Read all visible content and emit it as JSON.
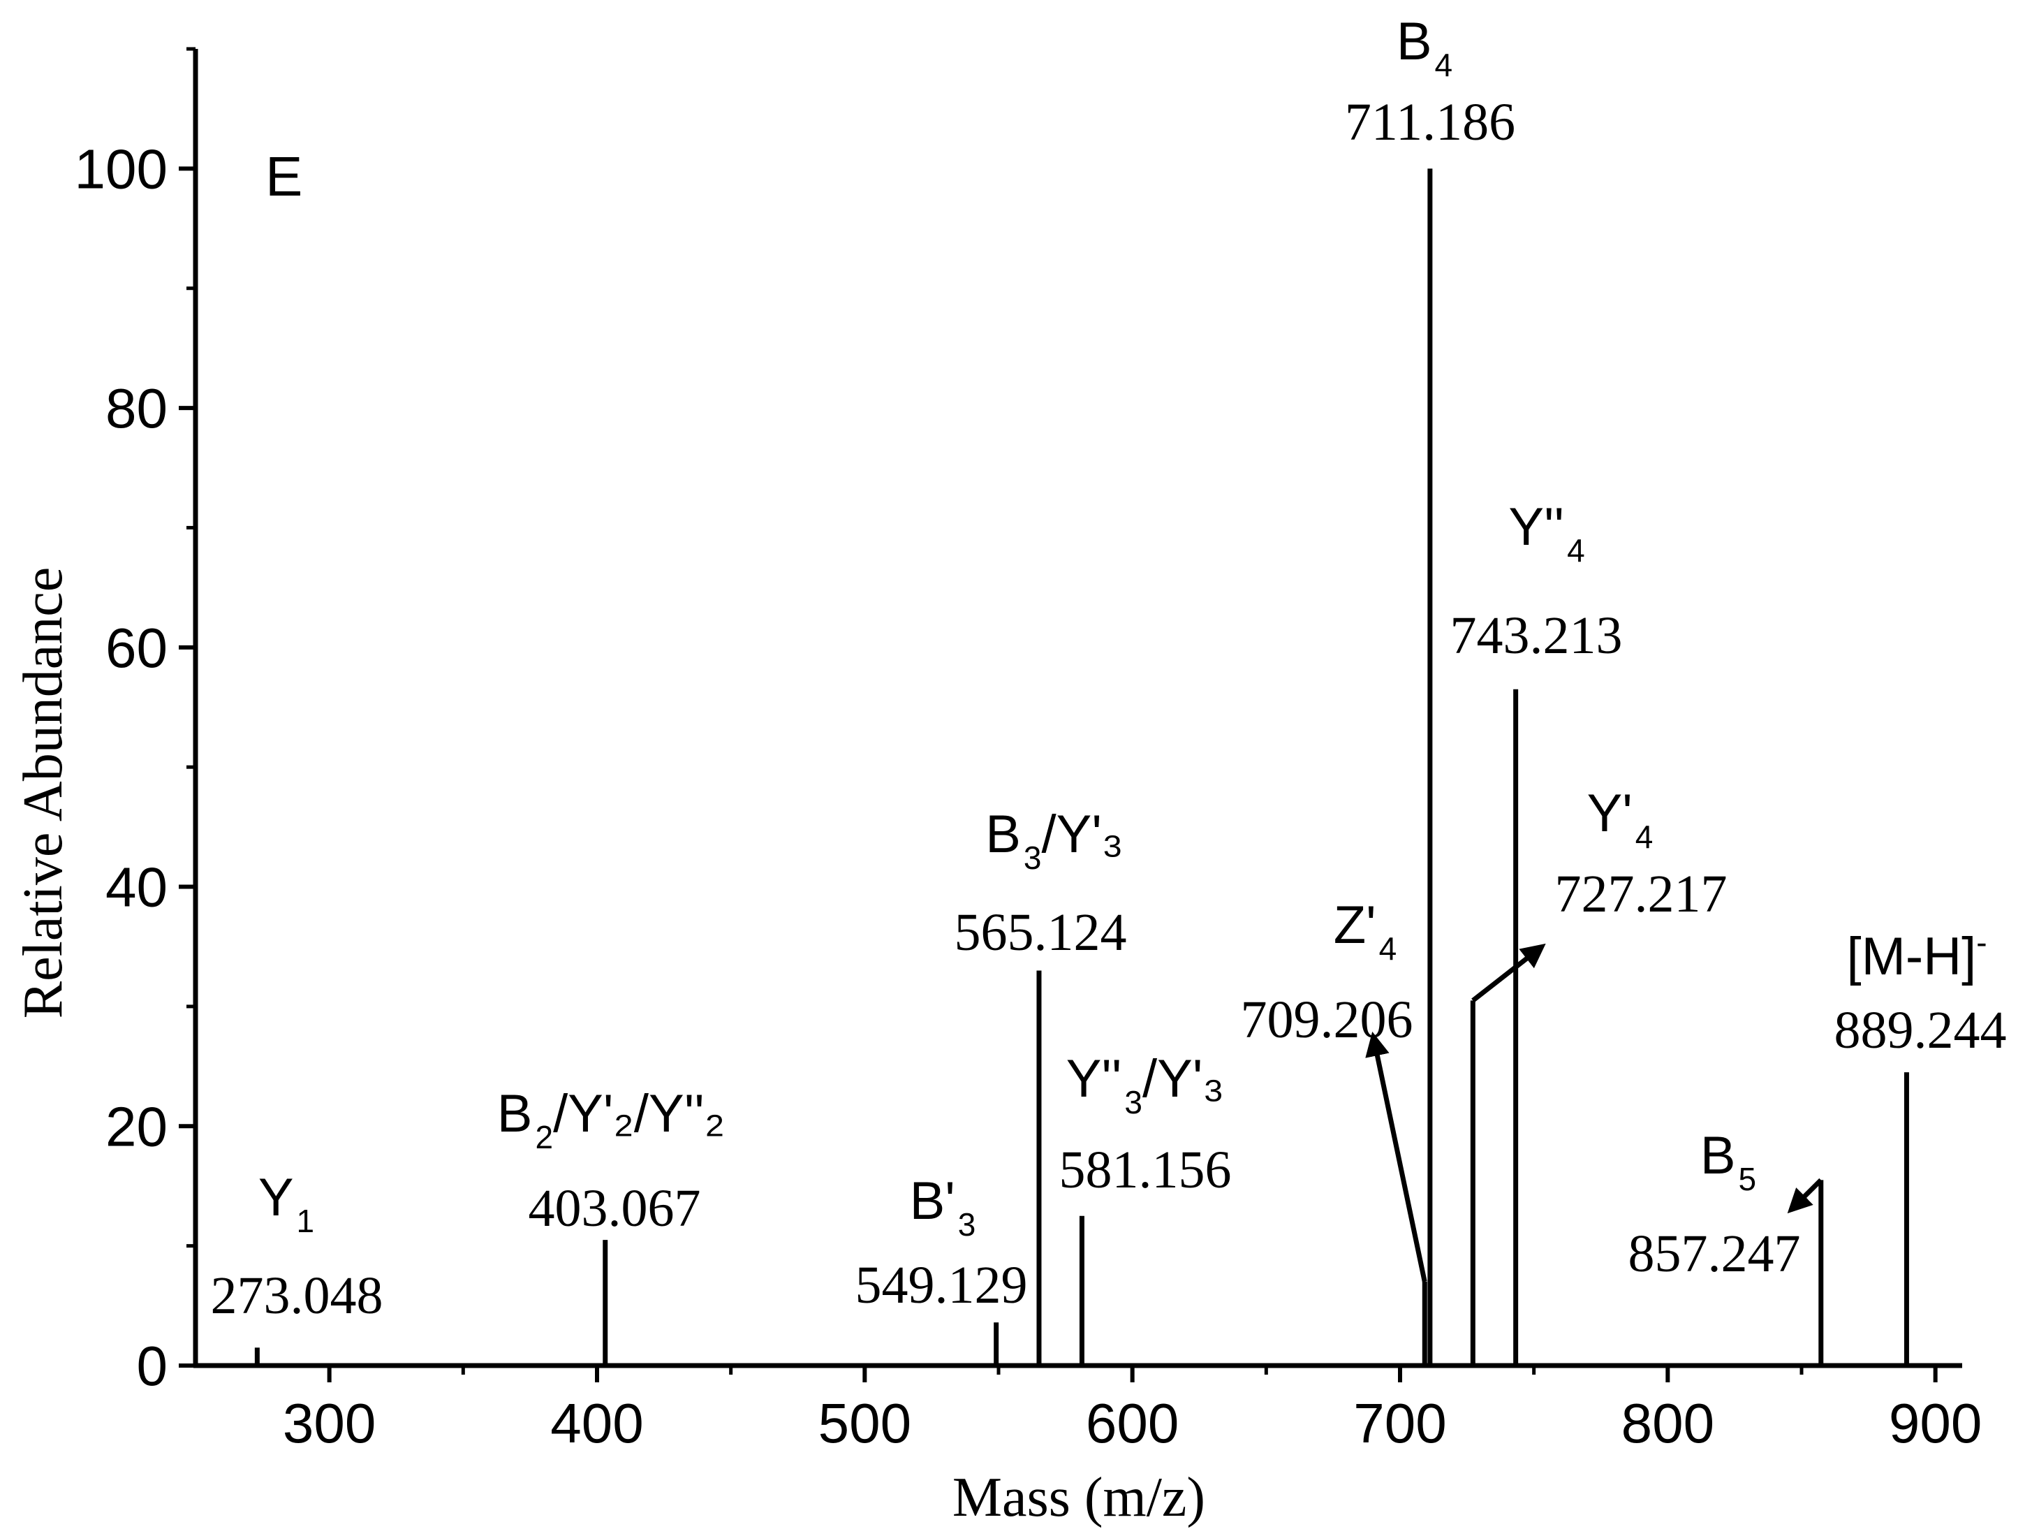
{
  "chart_data": {
    "type": "bar",
    "panel_letter": "E",
    "xlabel": "Mass (m/z)",
    "ylabel": "Relative Abundance",
    "xlim": [
      250,
      910
    ],
    "ylim": [
      0,
      110
    ],
    "xticks": [
      "300",
      "400",
      "500",
      "600",
      "700",
      "800",
      "900"
    ],
    "yticks": [
      "0",
      "20",
      "40",
      "60",
      "80",
      "100"
    ],
    "grid": false,
    "peaks": [
      {
        "mz": 273.048,
        "intensity": 1.5,
        "mass_label": "273.048",
        "ion": {
          "main": "Y",
          "sub": "1",
          "tail": ""
        }
      },
      {
        "mz": 403.067,
        "intensity": 10.5,
        "mass_label": "403.067",
        "ion": {
          "main": "B",
          "sub": "2",
          "tail": "/Y'₂/Y''₂"
        }
      },
      {
        "mz": 549.129,
        "intensity": 3.6,
        "mass_label": "549.129",
        "ion": {
          "main": "B'",
          "sub": "3",
          "tail": ""
        }
      },
      {
        "mz": 565.124,
        "intensity": 33,
        "mass_label": "565.124",
        "ion": {
          "main": "B",
          "sub": "3",
          "tail": "/Y'₃"
        }
      },
      {
        "mz": 581.156,
        "intensity": 12.5,
        "mass_label": "581.156",
        "ion": {
          "main": "Y''",
          "sub": "3",
          "tail": "/Y'₃"
        }
      },
      {
        "mz": 709.206,
        "intensity": 7,
        "mass_label": "709.206",
        "ion": {
          "main": "Z'",
          "sub": "4",
          "tail": ""
        }
      },
      {
        "mz": 711.186,
        "intensity": 100,
        "mass_label": "711.186",
        "ion": {
          "main": "B",
          "sub": "4",
          "tail": ""
        }
      },
      {
        "mz": 727.217,
        "intensity": 30.5,
        "mass_label": "727.217",
        "ion": {
          "main": "Y'",
          "sub": "4",
          "tail": ""
        }
      },
      {
        "mz": 743.213,
        "intensity": 56.5,
        "mass_label": "743.213",
        "ion": {
          "main": "Y''",
          "sub": "4",
          "tail": ""
        }
      },
      {
        "mz": 857.247,
        "intensity": 15.5,
        "mass_label": "857.247",
        "ion": {
          "main": "B",
          "sub": "5",
          "tail": ""
        }
      },
      {
        "mz": 889.244,
        "intensity": 24.5,
        "mass_label": "889.244",
        "ion": {
          "main": "[M-H]",
          "sub": "",
          "tail": "",
          "sup": "-"
        }
      }
    ],
    "arrows": [
      {
        "peak": "709.206",
        "to_mz": 690,
        "to_intensity": 27.5
      },
      {
        "peak": "727.217",
        "to_mz": 753,
        "to_intensity": 35
      },
      {
        "peak": "857.247",
        "to_mz": 846,
        "to_intensity": 13
      }
    ]
  }
}
